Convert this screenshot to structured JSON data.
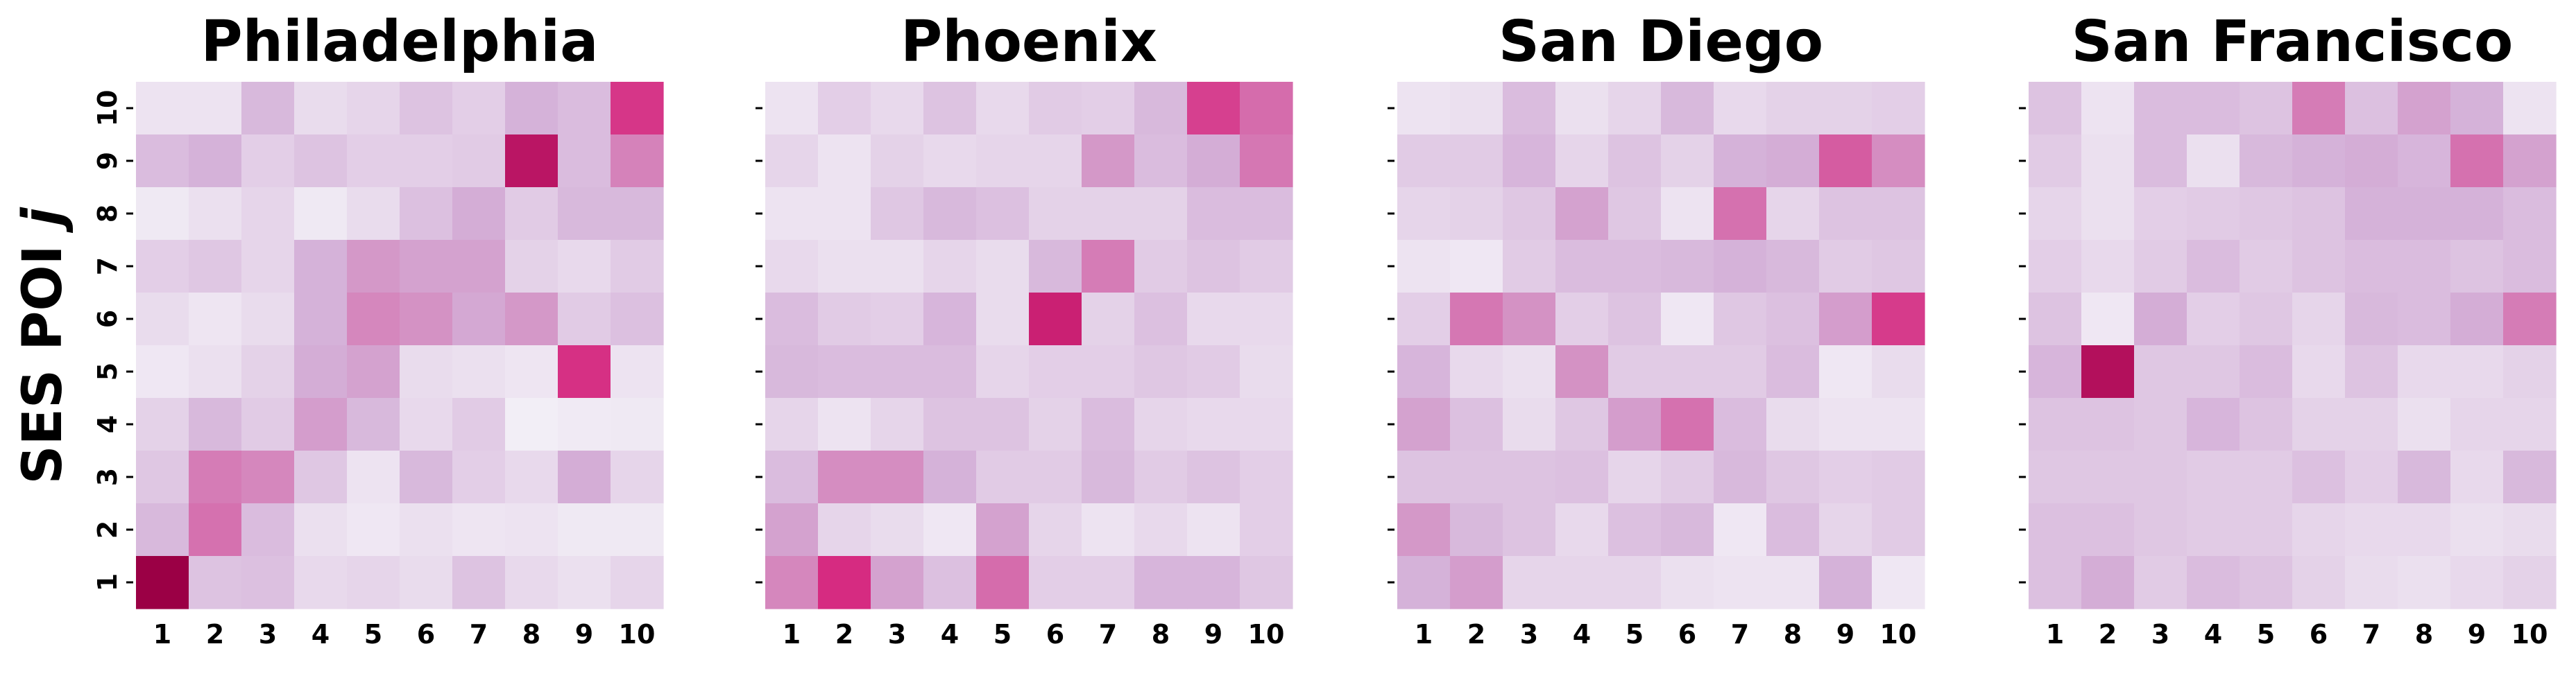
{
  "chart_data": {
    "type": "heatmap",
    "ylabel_text": "SES POI ",
    "ylabel_var": "j",
    "x_ticks": [
      "1",
      "2",
      "3",
      "4",
      "5",
      "6",
      "7",
      "8",
      "9",
      "10"
    ],
    "y_ticks": [
      "1",
      "2",
      "3",
      "4",
      "5",
      "6",
      "7",
      "8",
      "9",
      "10"
    ],
    "colormap": {
      "low": "#f2eef6",
      "mid": "#d4b0d8",
      "high": "#d6287f",
      "max": "#9b0045"
    },
    "value_range": [
      0,
      1
    ],
    "value_layout": "rows listed top-to-bottom (y = 10 down to 1), columns x = 1..10",
    "panels": [
      {
        "title": "Philadelphia",
        "values": [
          [
            0.06,
            0.06,
            0.3,
            0.1,
            0.14,
            0.24,
            0.18,
            0.34,
            0.28,
            0.8
          ],
          [
            0.28,
            0.34,
            0.18,
            0.24,
            0.18,
            0.18,
            0.2,
            0.92,
            0.28,
            0.52
          ],
          [
            0.03,
            0.08,
            0.14,
            0.03,
            0.1,
            0.26,
            0.36,
            0.2,
            0.3,
            0.3
          ],
          [
            0.18,
            0.22,
            0.14,
            0.34,
            0.44,
            0.4,
            0.4,
            0.16,
            0.12,
            0.2
          ],
          [
            0.1,
            0.05,
            0.1,
            0.34,
            0.5,
            0.46,
            0.38,
            0.44,
            0.2,
            0.26
          ],
          [
            0.04,
            0.08,
            0.16,
            0.36,
            0.4,
            0.1,
            0.08,
            0.05,
            0.82,
            0.06
          ],
          [
            0.16,
            0.3,
            0.2,
            0.42,
            0.3,
            0.12,
            0.2,
            0.0,
            0.02,
            0.03
          ],
          [
            0.22,
            0.54,
            0.5,
            0.22,
            0.06,
            0.3,
            0.18,
            0.12,
            0.36,
            0.14
          ],
          [
            0.3,
            0.58,
            0.28,
            0.08,
            0.04,
            0.08,
            0.05,
            0.06,
            0.03,
            0.03
          ],
          [
            1.0,
            0.24,
            0.26,
            0.12,
            0.14,
            0.1,
            0.24,
            0.12,
            0.08,
            0.14
          ]
        ]
      },
      {
        "title": "Phoenix",
        "values": [
          [
            0.06,
            0.18,
            0.12,
            0.24,
            0.12,
            0.2,
            0.18,
            0.3,
            0.76,
            0.6
          ],
          [
            0.14,
            0.06,
            0.16,
            0.12,
            0.14,
            0.14,
            0.44,
            0.28,
            0.36,
            0.56
          ],
          [
            0.06,
            0.06,
            0.22,
            0.3,
            0.26,
            0.16,
            0.16,
            0.16,
            0.28,
            0.28
          ],
          [
            0.12,
            0.08,
            0.08,
            0.14,
            0.1,
            0.3,
            0.54,
            0.2,
            0.24,
            0.2
          ],
          [
            0.28,
            0.2,
            0.18,
            0.32,
            0.1,
            0.88,
            0.16,
            0.26,
            0.12,
            0.12
          ],
          [
            0.3,
            0.28,
            0.28,
            0.28,
            0.14,
            0.18,
            0.18,
            0.22,
            0.2,
            0.1
          ],
          [
            0.14,
            0.06,
            0.14,
            0.24,
            0.24,
            0.16,
            0.28,
            0.14,
            0.12,
            0.12
          ],
          [
            0.28,
            0.48,
            0.48,
            0.34,
            0.2,
            0.2,
            0.3,
            0.2,
            0.24,
            0.18
          ],
          [
            0.4,
            0.14,
            0.1,
            0.04,
            0.4,
            0.14,
            0.06,
            0.12,
            0.06,
            0.18
          ],
          [
            0.5,
            0.84,
            0.4,
            0.26,
            0.6,
            0.18,
            0.18,
            0.32,
            0.32,
            0.22
          ]
        ]
      },
      {
        "title": "San Diego",
        "values": [
          [
            0.06,
            0.08,
            0.28,
            0.08,
            0.14,
            0.3,
            0.12,
            0.16,
            0.16,
            0.18
          ],
          [
            0.2,
            0.2,
            0.32,
            0.14,
            0.24,
            0.16,
            0.34,
            0.36,
            0.66,
            0.48
          ],
          [
            0.14,
            0.16,
            0.22,
            0.4,
            0.22,
            0.06,
            0.58,
            0.14,
            0.24,
            0.24
          ],
          [
            0.06,
            0.04,
            0.2,
            0.28,
            0.28,
            0.3,
            0.34,
            0.3,
            0.2,
            0.22
          ],
          [
            0.18,
            0.56,
            0.46,
            0.18,
            0.24,
            0.04,
            0.22,
            0.26,
            0.42,
            0.78
          ],
          [
            0.32,
            0.12,
            0.08,
            0.46,
            0.2,
            0.2,
            0.2,
            0.28,
            0.04,
            0.1
          ],
          [
            0.4,
            0.26,
            0.1,
            0.22,
            0.42,
            0.58,
            0.28,
            0.1,
            0.06,
            0.06
          ],
          [
            0.24,
            0.24,
            0.24,
            0.26,
            0.14,
            0.2,
            0.3,
            0.22,
            0.18,
            0.2
          ],
          [
            0.44,
            0.3,
            0.24,
            0.12,
            0.26,
            0.3,
            0.04,
            0.28,
            0.14,
            0.2
          ],
          [
            0.34,
            0.42,
            0.14,
            0.14,
            0.14,
            0.08,
            0.06,
            0.06,
            0.34,
            0.04
          ]
        ]
      },
      {
        "title": "San Francisco",
        "values": [
          [
            0.24,
            0.06,
            0.28,
            0.28,
            0.24,
            0.54,
            0.26,
            0.4,
            0.34,
            0.06
          ],
          [
            0.2,
            0.08,
            0.28,
            0.08,
            0.3,
            0.34,
            0.36,
            0.32,
            0.58,
            0.4
          ],
          [
            0.14,
            0.08,
            0.18,
            0.2,
            0.22,
            0.24,
            0.34,
            0.34,
            0.34,
            0.28
          ],
          [
            0.18,
            0.12,
            0.2,
            0.28,
            0.2,
            0.24,
            0.28,
            0.28,
            0.24,
            0.28
          ],
          [
            0.24,
            0.04,
            0.36,
            0.18,
            0.22,
            0.14,
            0.3,
            0.28,
            0.36,
            0.54
          ],
          [
            0.32,
            0.94,
            0.22,
            0.22,
            0.28,
            0.12,
            0.24,
            0.12,
            0.12,
            0.16
          ],
          [
            0.24,
            0.24,
            0.22,
            0.32,
            0.24,
            0.16,
            0.16,
            0.08,
            0.14,
            0.14
          ],
          [
            0.22,
            0.22,
            0.22,
            0.2,
            0.2,
            0.26,
            0.18,
            0.3,
            0.12,
            0.3
          ],
          [
            0.26,
            0.26,
            0.22,
            0.2,
            0.2,
            0.14,
            0.12,
            0.12,
            0.08,
            0.1
          ],
          [
            0.26,
            0.36,
            0.2,
            0.28,
            0.24,
            0.16,
            0.1,
            0.08,
            0.12,
            0.16
          ]
        ]
      }
    ]
  }
}
